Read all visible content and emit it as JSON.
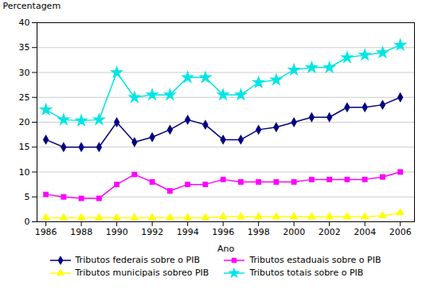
{
  "chart_data": {
    "type": "line",
    "x": [
      1986,
      1987,
      1988,
      1989,
      1990,
      1991,
      1992,
      1993,
      1994,
      1995,
      1996,
      1997,
      1998,
      1999,
      2000,
      2001,
      2002,
      2003,
      2004,
      2005,
      2006
    ],
    "series": [
      {
        "name": "Tributos federais sobre o PIB",
        "color": "#000080",
        "marker": "diamond",
        "values": [
          16.5,
          15.0,
          15.0,
          15.0,
          20.0,
          16.0,
          17.0,
          18.5,
          20.5,
          19.5,
          16.5,
          16.5,
          18.5,
          19.0,
          20.0,
          21.0,
          21.0,
          23.0,
          23.0,
          23.5,
          25.0
        ]
      },
      {
        "name": "Tributos estaduais sobre o PIB",
        "color": "#FF00FF",
        "marker": "square",
        "values": [
          5.5,
          5.0,
          4.7,
          4.7,
          7.5,
          9.5,
          8.0,
          6.2,
          7.5,
          7.5,
          8.5,
          8.0,
          8.0,
          8.0,
          8.0,
          8.5,
          8.5,
          8.5,
          8.5,
          9.0,
          10.0
        ]
      },
      {
        "name": "Tributos municipais sobreo PIB",
        "color": "#FFFF00",
        "marker": "triangle",
        "values": [
          0.8,
          0.8,
          0.8,
          0.8,
          0.8,
          0.8,
          0.8,
          0.8,
          0.8,
          0.8,
          1.0,
          1.0,
          1.0,
          1.0,
          1.0,
          1.0,
          1.0,
          1.0,
          1.0,
          1.2,
          1.8
        ]
      },
      {
        "name": "Tributos totais sobre o PIB",
        "color": "#00E5E5",
        "marker": "star",
        "values": [
          22.5,
          20.5,
          20.3,
          20.5,
          30.0,
          25.0,
          25.5,
          25.5,
          29.0,
          29.0,
          25.5,
          25.5,
          28.0,
          28.5,
          30.5,
          31.0,
          31.0,
          33.0,
          33.5,
          34.0,
          35.5
        ]
      }
    ],
    "x_label": "Ano",
    "y_label": "Percentagem",
    "xlim": [
      1985.5,
      2006.8
    ],
    "xticks": [
      1986,
      1988,
      1990,
      1992,
      1994,
      1996,
      1998,
      2000,
      2002,
      2004,
      2006
    ],
    "ylim": [
      0,
      40
    ],
    "yticks": [
      0,
      5,
      10,
      15,
      20,
      25,
      30,
      35,
      40
    ],
    "grid": true,
    "legend": "bottom"
  }
}
